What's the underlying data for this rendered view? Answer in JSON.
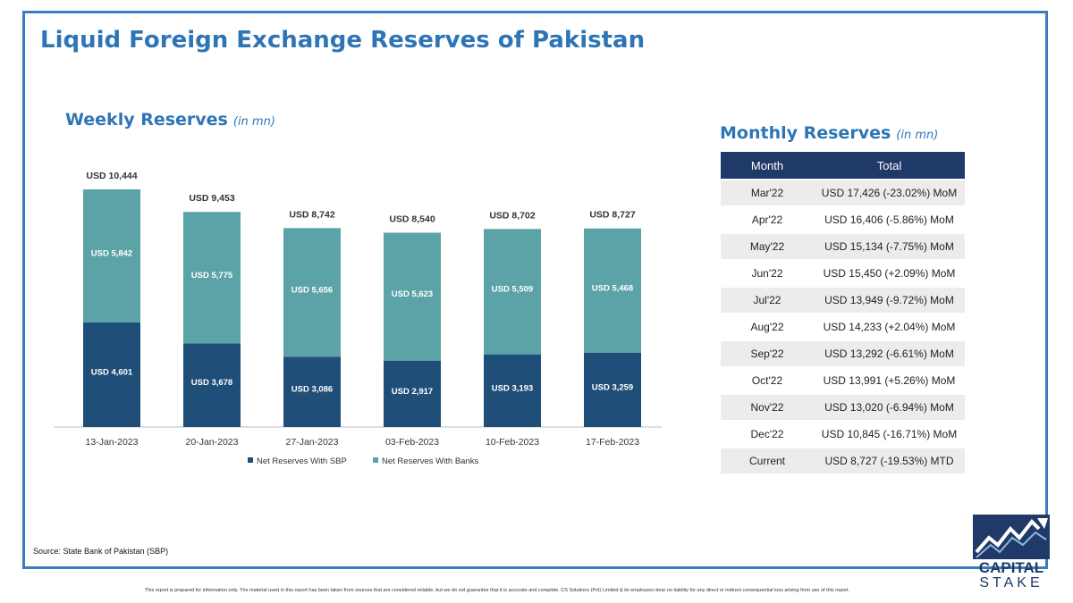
{
  "title": "Liquid Foreign Exchange Reserves of Pakistan",
  "weekly": {
    "title": "Weekly Reserves",
    "unit": "(in mn)"
  },
  "monthly": {
    "title": "Monthly Reserves",
    "unit": "(in mn)",
    "columns": [
      "Month",
      "Total"
    ],
    "rows": [
      {
        "month": "Mar'22",
        "total": "USD 17,426 (-23.02%) MoM"
      },
      {
        "month": "Apr'22",
        "total": "USD 16,406 (-5.86%) MoM"
      },
      {
        "month": "May'22",
        "total": "USD 15,134 (-7.75%) MoM"
      },
      {
        "month": "Jun'22",
        "total": "USD 15,450 (+2.09%) MoM"
      },
      {
        "month": "Jul'22",
        "total": "USD 13,949 (-9.72%) MoM"
      },
      {
        "month": "Aug'22",
        "total": "USD 14,233 (+2.04%) MoM"
      },
      {
        "month": "Sep'22",
        "total": "USD 13,292 (-6.61%) MoM"
      },
      {
        "month": "Oct'22",
        "total": "USD 13,991 (+5.26%) MoM"
      },
      {
        "month": "Nov'22",
        "total": "USD 13,020 (-6.94%) MoM"
      },
      {
        "month": "Dec'22",
        "total": "USD 10,845 (-16.71%) MoM"
      },
      {
        "month": "Current",
        "total": "USD 8,727 (-19.53%) MTD"
      }
    ]
  },
  "chart_data": {
    "type": "bar",
    "stacked": true,
    "categories": [
      "13-Jan-2023",
      "20-Jan-2023",
      "27-Jan-2023",
      "03-Feb-2023",
      "10-Feb-2023",
      "17-Feb-2023"
    ],
    "series": [
      {
        "name": "Net Reserves With SBP",
        "values": [
          4601,
          3678,
          3086,
          2917,
          3193,
          3259
        ],
        "labels": [
          "USD 4,601",
          "USD 3,678",
          "USD 3,086",
          "USD 2,917",
          "USD 3,193",
          "USD 3,259"
        ],
        "color": "#1f4e79"
      },
      {
        "name": "Net Reserves With Banks",
        "values": [
          5842,
          5775,
          5656,
          5623,
          5509,
          5468
        ],
        "labels": [
          "USD 5,842",
          "USD 5,775",
          "USD 5,656",
          "USD 5,623",
          "USD 5,509",
          "USD 5,468"
        ],
        "color": "#5ba3a6"
      }
    ],
    "totals": [
      10444,
      9453,
      8742,
      8540,
      8702,
      8727
    ],
    "total_labels": [
      "USD 10,444",
      "USD 9,453",
      "USD 8,742",
      "USD 8,540",
      "USD 8,702",
      "USD 8,727"
    ],
    "ylim": [
      0,
      10600
    ],
    "legend_position": "bottom",
    "grid": false
  },
  "source": "Source: State Bank of Pakistan (SBP)",
  "disclaimer": "This report is prepared for information only. The material used in this report has been taken from sources that are considered reliable, but we do not guarantee that it is accurate and complete. CS Solutions (Pvt) Limited & its employees bear no liability for any direct or indirect consequential loss arising from use of this report.",
  "logo": {
    "line1": "CAPITAL",
    "line2": "STAKE",
    "color": "#1f3a68",
    "icon": "rising-chart-icon"
  }
}
